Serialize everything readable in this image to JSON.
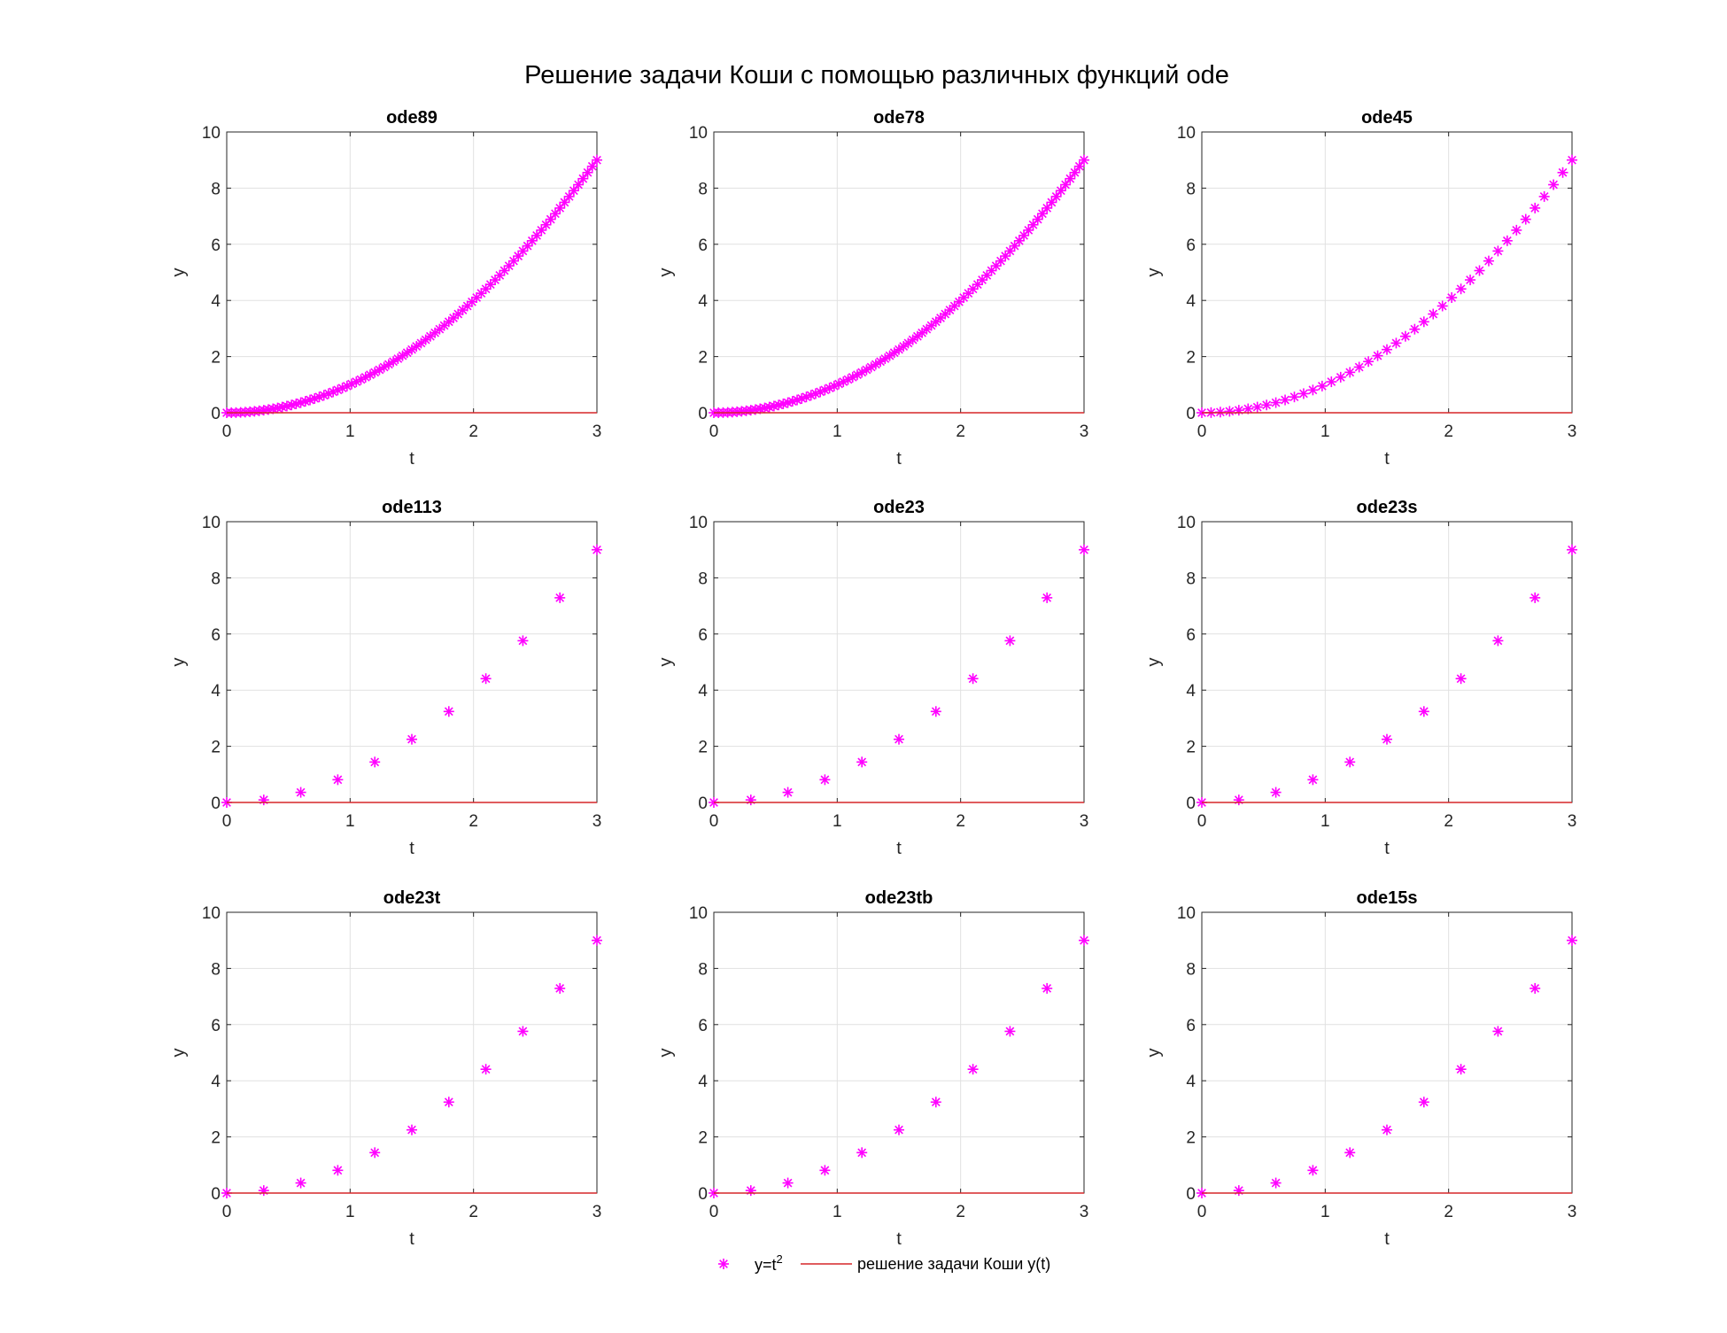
{
  "figure": {
    "title": "Решение задачи Коши с помощью различных функций ode",
    "legend": {
      "placement": "bottom-center",
      "entries": [
        {
          "label": "y=t",
          "superscript": "2",
          "marker": "asterisk",
          "color": "#ff00ff"
        },
        {
          "label": "решение задачи Коши y(t)",
          "marker": "line",
          "color": "#d62728"
        }
      ]
    }
  },
  "colors": {
    "marker": "#ff00ff",
    "line": "#d62728",
    "grid": "#e1e1e1",
    "axes": "#262626"
  },
  "chart_data": [
    {
      "type": "scatter",
      "title": "ode89",
      "xlabel": "t",
      "ylabel": "y",
      "xlim": [
        0,
        3
      ],
      "ylim": [
        0,
        10
      ],
      "xticks": [
        "0",
        "1",
        "2",
        "3"
      ],
      "yticks": [
        "0",
        "2",
        "4",
        "6",
        "8",
        "10"
      ],
      "grid": true,
      "series": [
        {
          "name": "y=t^2",
          "kind": "markers",
          "n_points": 81,
          "x_range": [
            0,
            3
          ],
          "formula": "y=t^2"
        },
        {
          "name": "решение задачи Коши y(t)",
          "kind": "line",
          "x": [
            0,
            3
          ],
          "y": [
            0,
            0
          ]
        }
      ]
    },
    {
      "type": "scatter",
      "title": "ode78",
      "xlabel": "t",
      "ylabel": "y",
      "xlim": [
        0,
        3
      ],
      "ylim": [
        0,
        10
      ],
      "xticks": [
        "0",
        "1",
        "2",
        "3"
      ],
      "yticks": [
        "0",
        "2",
        "4",
        "6",
        "8",
        "10"
      ],
      "grid": true,
      "series": [
        {
          "name": "y=t^2",
          "kind": "markers",
          "n_points": 81,
          "x_range": [
            0,
            3
          ],
          "formula": "y=t^2"
        },
        {
          "name": "решение задачи Коши y(t)",
          "kind": "line",
          "x": [
            0,
            3
          ],
          "y": [
            0,
            0
          ]
        }
      ]
    },
    {
      "type": "scatter",
      "title": "ode45",
      "xlabel": "t",
      "ylabel": "y",
      "xlim": [
        0,
        3
      ],
      "ylim": [
        0,
        10
      ],
      "xticks": [
        "0",
        "1",
        "2",
        "3"
      ],
      "yticks": [
        "0",
        "2",
        "4",
        "6",
        "8",
        "10"
      ],
      "grid": true,
      "series": [
        {
          "name": "y=t^2",
          "kind": "markers",
          "n_points": 41,
          "x_range": [
            0,
            3
          ],
          "formula": "y=t^2"
        },
        {
          "name": "решение задачи Коши y(t)",
          "kind": "line",
          "x": [
            0,
            3
          ],
          "y": [
            0,
            0
          ]
        }
      ]
    },
    {
      "type": "scatter",
      "title": "ode113",
      "xlabel": "t",
      "ylabel": "y",
      "xlim": [
        0,
        3
      ],
      "ylim": [
        0,
        10
      ],
      "xticks": [
        "0",
        "1",
        "2",
        "3"
      ],
      "yticks": [
        "0",
        "2",
        "4",
        "6",
        "8",
        "10"
      ],
      "grid": true,
      "series": [
        {
          "name": "y=t^2",
          "kind": "markers",
          "n_points": 11,
          "x_range": [
            0,
            3
          ],
          "formula": "y=t^2"
        },
        {
          "name": "решение задачи Коши y(t)",
          "kind": "line",
          "x": [
            0,
            3
          ],
          "y": [
            0,
            0
          ]
        }
      ]
    },
    {
      "type": "scatter",
      "title": "ode23",
      "xlabel": "t",
      "ylabel": "y",
      "xlim": [
        0,
        3
      ],
      "ylim": [
        0,
        10
      ],
      "xticks": [
        "0",
        "1",
        "2",
        "3"
      ],
      "yticks": [
        "0",
        "2",
        "4",
        "6",
        "8",
        "10"
      ],
      "grid": true,
      "series": [
        {
          "name": "y=t^2",
          "kind": "markers",
          "n_points": 11,
          "x_range": [
            0,
            3
          ],
          "formula": "y=t^2"
        },
        {
          "name": "решение задачи Коши y(t)",
          "kind": "line",
          "x": [
            0,
            3
          ],
          "y": [
            0,
            0
          ]
        }
      ]
    },
    {
      "type": "scatter",
      "title": "ode23s",
      "xlabel": "t",
      "ylabel": "y",
      "xlim": [
        0,
        3
      ],
      "ylim": [
        0,
        10
      ],
      "xticks": [
        "0",
        "1",
        "2",
        "3"
      ],
      "yticks": [
        "0",
        "2",
        "4",
        "6",
        "8",
        "10"
      ],
      "grid": true,
      "series": [
        {
          "name": "y=t^2",
          "kind": "markers",
          "n_points": 11,
          "x_range": [
            0,
            3
          ],
          "formula": "y=t^2"
        },
        {
          "name": "решение задачи Коши y(t)",
          "kind": "line",
          "x": [
            0,
            3
          ],
          "y": [
            0,
            0
          ]
        }
      ]
    },
    {
      "type": "scatter",
      "title": "ode23t",
      "xlabel": "t",
      "ylabel": "y",
      "xlim": [
        0,
        3
      ],
      "ylim": [
        0,
        10
      ],
      "xticks": [
        "0",
        "1",
        "2",
        "3"
      ],
      "yticks": [
        "0",
        "2",
        "4",
        "6",
        "8",
        "10"
      ],
      "grid": true,
      "series": [
        {
          "name": "y=t^2",
          "kind": "markers",
          "n_points": 11,
          "x_range": [
            0,
            3
          ],
          "formula": "y=t^2"
        },
        {
          "name": "решение задачи Коши y(t)",
          "kind": "line",
          "x": [
            0,
            3
          ],
          "y": [
            0,
            0
          ]
        }
      ]
    },
    {
      "type": "scatter",
      "title": "ode23tb",
      "xlabel": "t",
      "ylabel": "y",
      "xlim": [
        0,
        3
      ],
      "ylim": [
        0,
        10
      ],
      "xticks": [
        "0",
        "1",
        "2",
        "3"
      ],
      "yticks": [
        "0",
        "2",
        "4",
        "6",
        "8",
        "10"
      ],
      "grid": true,
      "series": [
        {
          "name": "y=t^2",
          "kind": "markers",
          "n_points": 11,
          "x_range": [
            0,
            3
          ],
          "formula": "y=t^2"
        },
        {
          "name": "решение задачи Коши y(t)",
          "kind": "line",
          "x": [
            0,
            3
          ],
          "y": [
            0,
            0
          ]
        }
      ]
    },
    {
      "type": "scatter",
      "title": "ode15s",
      "xlabel": "t",
      "ylabel": "y",
      "xlim": [
        0,
        3
      ],
      "ylim": [
        0,
        10
      ],
      "xticks": [
        "0",
        "1",
        "2",
        "3"
      ],
      "yticks": [
        "0",
        "2",
        "4",
        "6",
        "8",
        "10"
      ],
      "grid": true,
      "series": [
        {
          "name": "y=t^2",
          "kind": "markers",
          "n_points": 11,
          "x_range": [
            0,
            3
          ],
          "formula": "y=t^2"
        },
        {
          "name": "решение задачи Коши y(t)",
          "kind": "line",
          "x": [
            0,
            3
          ],
          "y": [
            0,
            0
          ]
        }
      ]
    }
  ]
}
